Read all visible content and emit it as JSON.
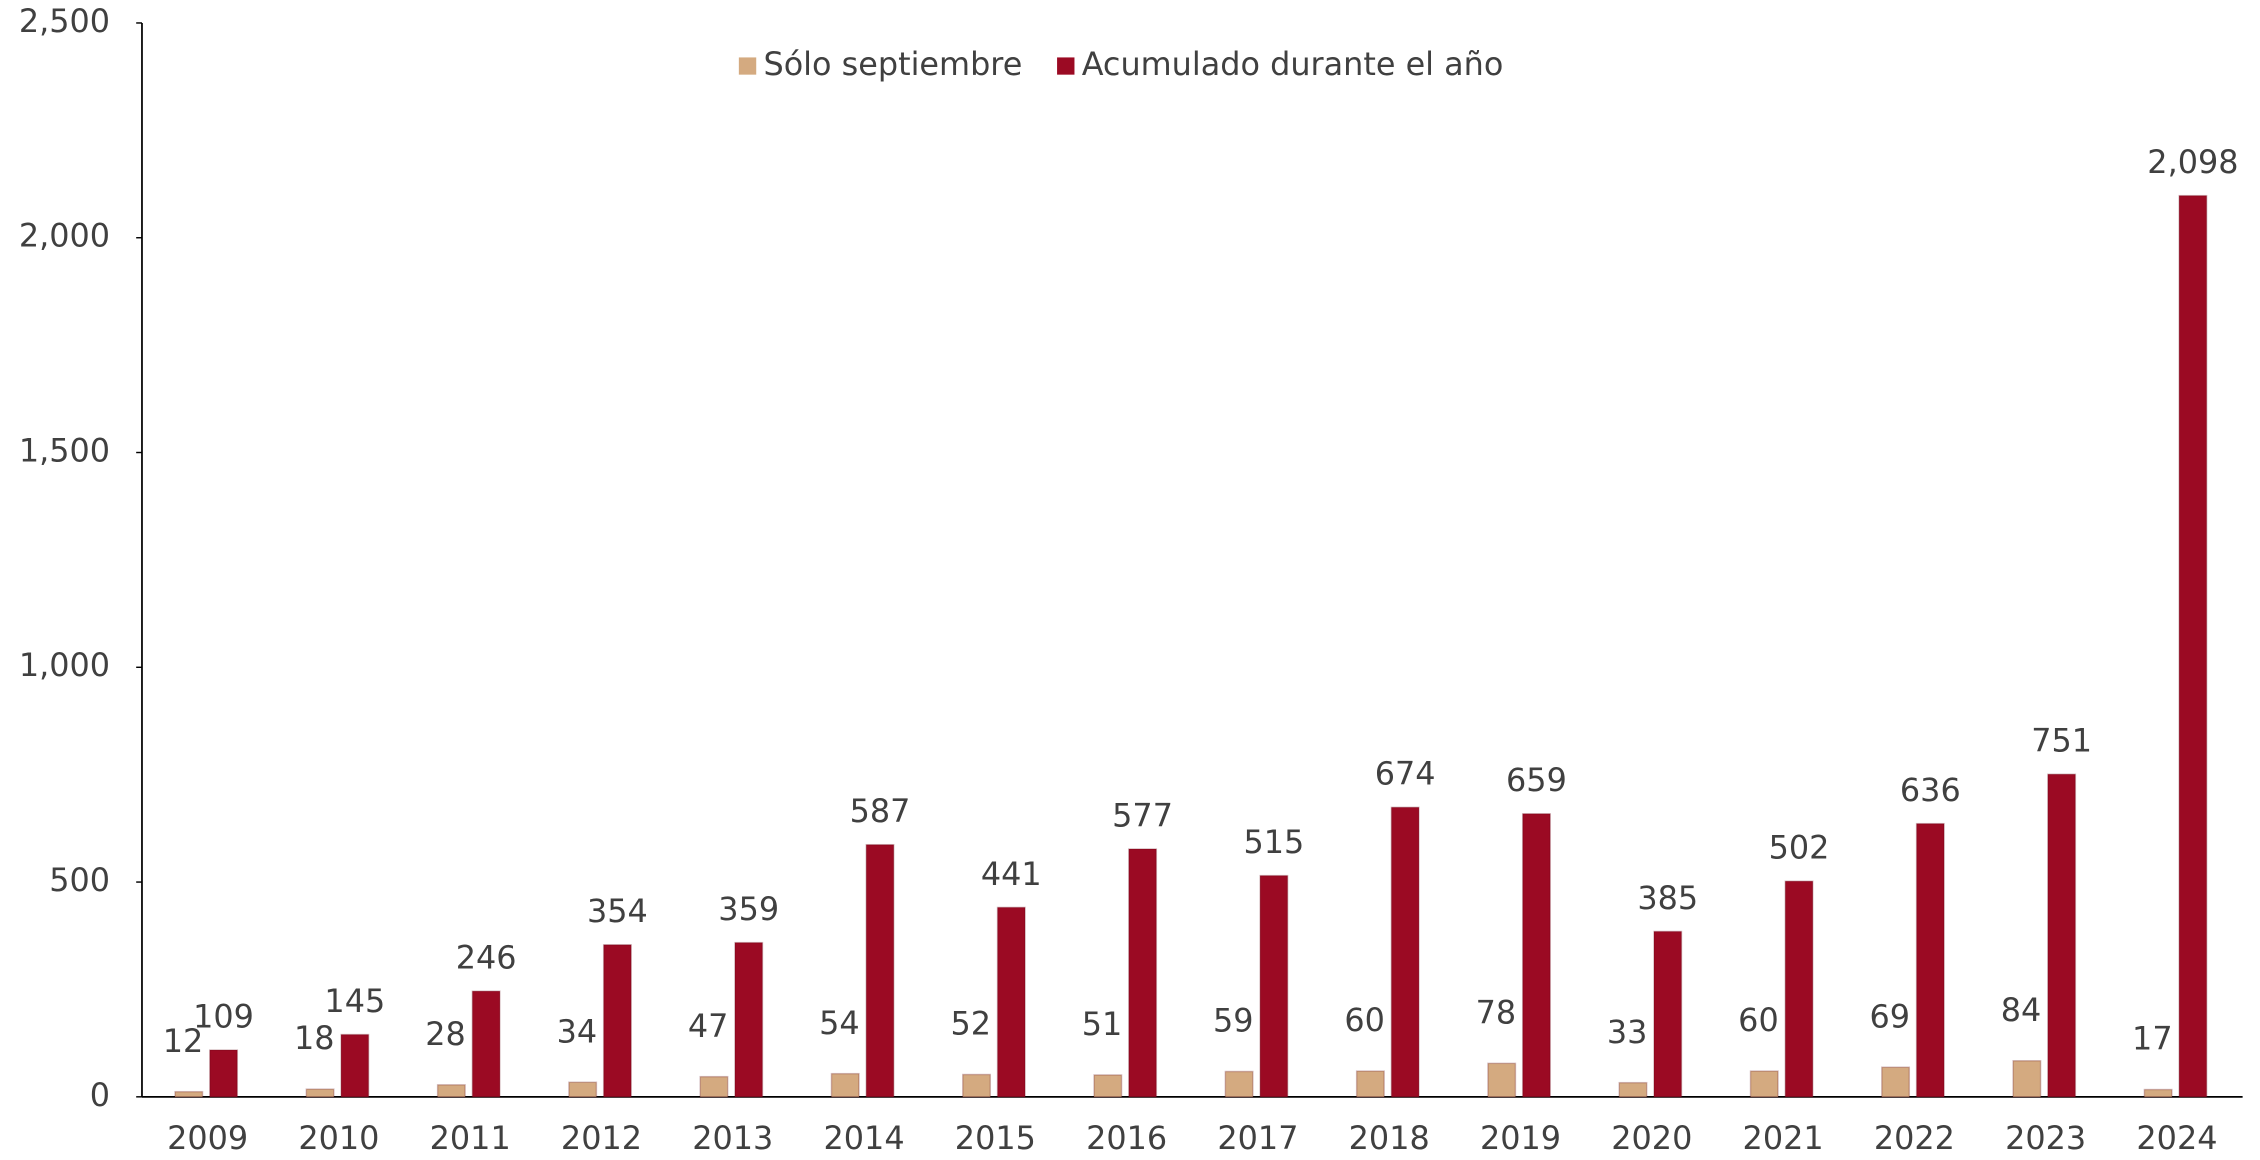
{
  "chart_data": {
    "type": "bar",
    "categories": [
      "2009",
      "2010",
      "2011",
      "2012",
      "2013",
      "2014",
      "2015",
      "2016",
      "2017",
      "2018",
      "2019",
      "2020",
      "2021",
      "2022",
      "2023",
      "2024"
    ],
    "series": [
      {
        "name": "Sólo septiembre",
        "color": "#d4aa80",
        "values": [
          12,
          18,
          28,
          34,
          47,
          54,
          52,
          51,
          59,
          60,
          78,
          33,
          60,
          69,
          84,
          17
        ]
      },
      {
        "name": "Acumulado durante el año",
        "color": "#9b0a23",
        "values": [
          109,
          145,
          246,
          354,
          359,
          587,
          441,
          577,
          515,
          674,
          659,
          385,
          502,
          636,
          751,
          2098
        ],
        "value_labels": [
          "109",
          "145",
          "246",
          "354",
          "359",
          "587",
          "441",
          "577",
          "515",
          "674",
          "659",
          "385",
          "502",
          "636",
          "751",
          "2,098"
        ]
      }
    ],
    "ylim": [
      0,
      2500
    ],
    "yticks": [
      0,
      500,
      {
        "value": 1000,
        "label": "1,000"
      },
      {
        "value": 1500,
        "label": "1,500"
      },
      {
        "value": 2000,
        "label": "2,000"
      },
      {
        "value": 2500,
        "label": "2,500"
      }
    ],
    "grid": false,
    "legend": "top"
  }
}
